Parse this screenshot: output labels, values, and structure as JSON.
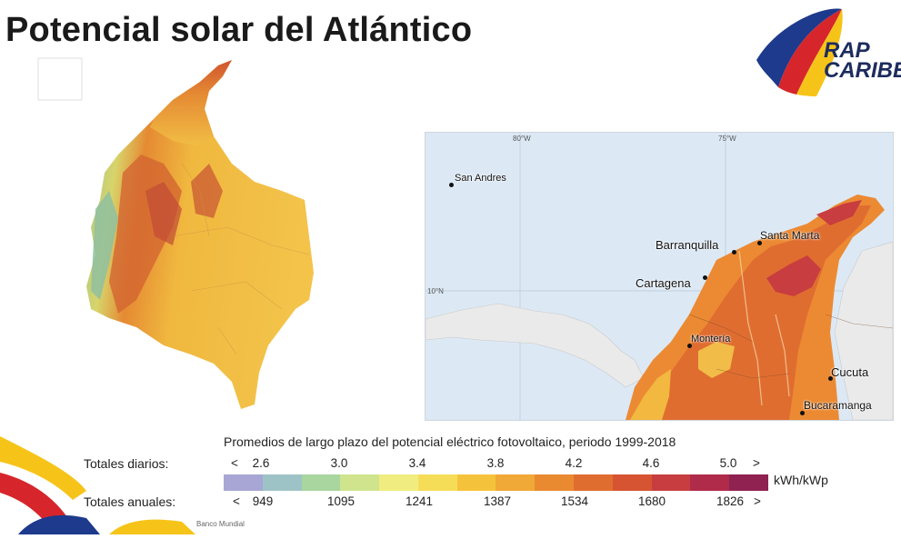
{
  "title": "Potencial solar del Atlántico",
  "logo": {
    "line1": "RAP",
    "line2": "CARIBE"
  },
  "map_left": {},
  "map_right": {
    "coords": {
      "lon_80": "80°W",
      "lon_75": "75°W",
      "lat_10": "10°N"
    },
    "cities": [
      {
        "name": "San Andres"
      },
      {
        "name": "Barranquilla"
      },
      {
        "name": "Santa Marta"
      },
      {
        "name": "Cartagena"
      },
      {
        "name": "Montería"
      },
      {
        "name": "Cucuta"
      },
      {
        "name": "Bucaramanga"
      }
    ]
  },
  "legend": {
    "title": "Promedios de largo plazo del potencial eléctrico fotovoltaico, periodo 1999-2018",
    "daily_label": "Totales diarios:",
    "annual_label": "Totales anuales:",
    "daily_ticks": [
      "<",
      "2.6",
      "3.0",
      "3.4",
      "3.8",
      "4.2",
      "4.6",
      "5.0",
      ">"
    ],
    "annual_ticks": [
      "<",
      "949",
      "1095",
      "1241",
      "1387",
      "1534",
      "1680",
      "1826",
      ">"
    ],
    "unit": "kWh/kWp",
    "colors": [
      "#a8a6d4",
      "#9ec3c6",
      "#a9d59f",
      "#cfe48c",
      "#f0ec7f",
      "#f6dd57",
      "#f5c33b",
      "#f0a836",
      "#e98a31",
      "#e06d30",
      "#d75432",
      "#c83d3f",
      "#b02b4a",
      "#8f2250"
    ]
  },
  "source": "Banco Mundial"
}
